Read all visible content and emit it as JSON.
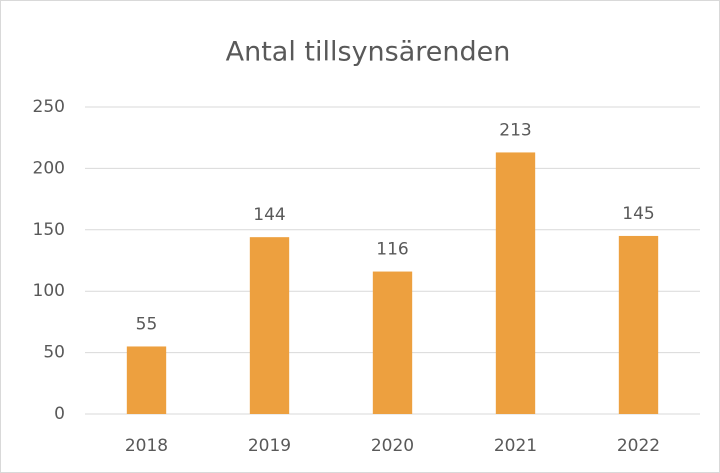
{
  "chart_data": {
    "type": "bar",
    "title": "Antal tillsynsärenden",
    "categories": [
      "2018",
      "2019",
      "2020",
      "2021",
      "2022"
    ],
    "values": [
      55,
      144,
      116,
      213,
      145
    ],
    "color": "#eda03f",
    "ylim": [
      0,
      250
    ],
    "yticks": [
      0,
      50,
      100,
      150,
      200,
      250
    ],
    "grid": true
  }
}
